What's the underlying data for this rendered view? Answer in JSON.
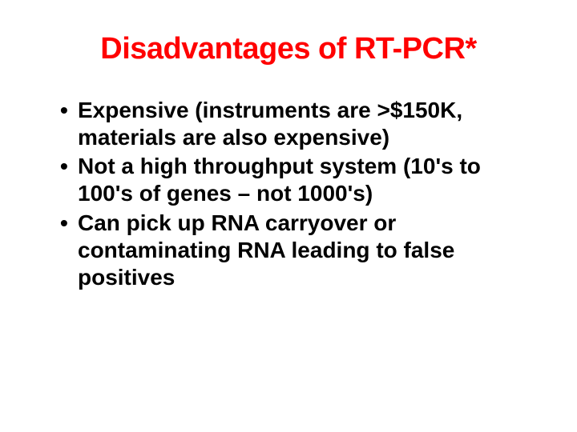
{
  "title": {
    "text": "Disadvantages of RT-PCR*",
    "color": "#ff0000",
    "fontsize": 38,
    "fontweight": "bold",
    "align": "center"
  },
  "bullets": {
    "color": "#000000",
    "fontsize": 28,
    "fontweight": "bold",
    "items": [
      "Expensive (instruments are >$150K, materials are also expensive)",
      "Not a high throughput system (10's to 100's of genes – not 1000's)",
      "Can pick up RNA carryover or contaminating RNA leading to false positives"
    ]
  },
  "background_color": "#ffffff"
}
